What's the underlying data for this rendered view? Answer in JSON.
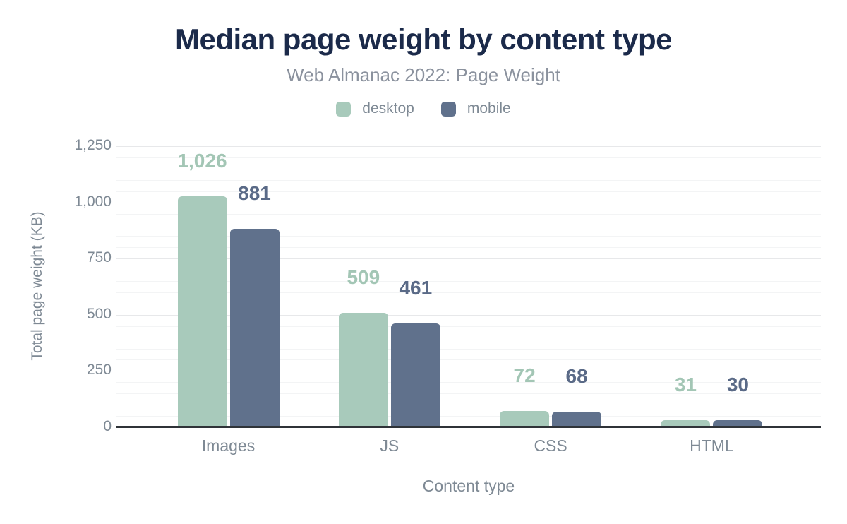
{
  "header": {
    "title": "Median page weight by content type",
    "subtitle": "Web Almanac 2022: Page Weight"
  },
  "legend": {
    "items": [
      {
        "label": "desktop",
        "color": "#a8cabb"
      },
      {
        "label": "mobile",
        "color": "#60718c"
      }
    ]
  },
  "axes": {
    "y_title": "Total page weight (KB)",
    "x_title": "Content type",
    "y_ticks": [
      {
        "value": 0,
        "label": "0"
      },
      {
        "value": 250,
        "label": "250"
      },
      {
        "value": 500,
        "label": "500"
      },
      {
        "value": 750,
        "label": "750"
      },
      {
        "value": 1000,
        "label": "1,000"
      },
      {
        "value": 1250,
        "label": "1,250"
      }
    ]
  },
  "chart_data": {
    "type": "bar",
    "title": "Median page weight by content type",
    "subtitle": "Web Almanac 2022: Page Weight",
    "categories": [
      "Images",
      "JS",
      "CSS",
      "HTML"
    ],
    "series": [
      {
        "name": "desktop",
        "color": "#a8cabb",
        "label_color": "#a3c6b5",
        "values": [
          1026,
          509,
          72,
          31
        ],
        "labels": [
          "1,026",
          "509",
          "72",
          "31"
        ]
      },
      {
        "name": "mobile",
        "color": "#60718c",
        "label_color": "#5a6a87",
        "values": [
          881,
          461,
          68,
          30
        ],
        "labels": [
          "881",
          "461",
          "68",
          "30"
        ]
      }
    ],
    "xlabel": "Content type",
    "ylabel": "Total page weight (KB)",
    "ylim": [
      0,
      1250
    ],
    "y_tick_step": 250,
    "y_minor_step": 50,
    "grid": true,
    "legend_position": "top",
    "title_color": "#1b2a4a",
    "subtitle_color": "#8b929e",
    "axis_text_color": "#7e8994",
    "baseline_color": "#2f3338"
  }
}
